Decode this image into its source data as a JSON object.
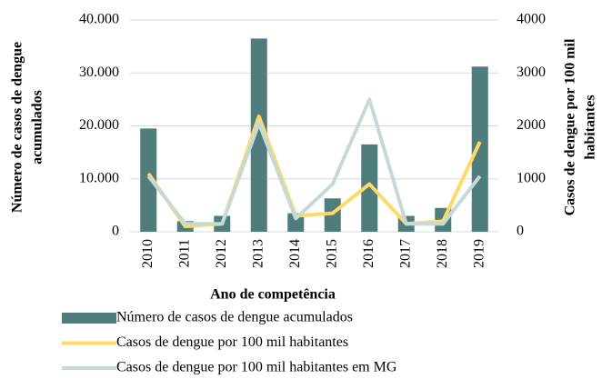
{
  "chart_data": {
    "type": "bar_line",
    "categories": [
      "2010",
      "2011",
      "2012",
      "2013",
      "2014",
      "2015",
      "2016",
      "2017",
      "2018",
      "2019"
    ],
    "xlabel": "Ano de competência",
    "ylabel": [
      "Número de casos de dengue",
      "acumulados"
    ],
    "y2label": [
      "Casos de dengue por 100 mil",
      "habitantes"
    ],
    "ylim": [
      0,
      40000
    ],
    "yticks": [
      0,
      {
        "value": 10000,
        "label": "10.000"
      },
      {
        "value": 20000,
        "label": "20.000"
      },
      {
        "value": 30000,
        "label": "30.000"
      },
      {
        "value": 40000,
        "label": "40.000"
      }
    ],
    "y2lim": [
      0,
      4000
    ],
    "y2ticks": [
      0,
      1000,
      2000,
      3000,
      4000
    ],
    "grid": true,
    "series": [
      {
        "name": "Número de casos de dengue acumulados",
        "type": "bar",
        "color": "#4e7d7b",
        "values": [
          19500,
          2000,
          3000,
          36500,
          3500,
          6300,
          16500,
          3000,
          4500,
          31200
        ]
      },
      {
        "name": "Casos de dengue por 100 mil habitantes",
        "type": "line",
        "axis": "y2",
        "color": "#ffd966",
        "values": [
          1100,
          100,
          150,
          2180,
          300,
          350,
          900,
          150,
          200,
          1700
        ]
      },
      {
        "name": "Casos de dengue por 100 mil habitantes em MG",
        "type": "line",
        "axis": "y2",
        "color": "#c5d9d9",
        "values": [
          1050,
          150,
          150,
          2050,
          250,
          900,
          2500,
          150,
          150,
          1050
        ]
      }
    ]
  }
}
